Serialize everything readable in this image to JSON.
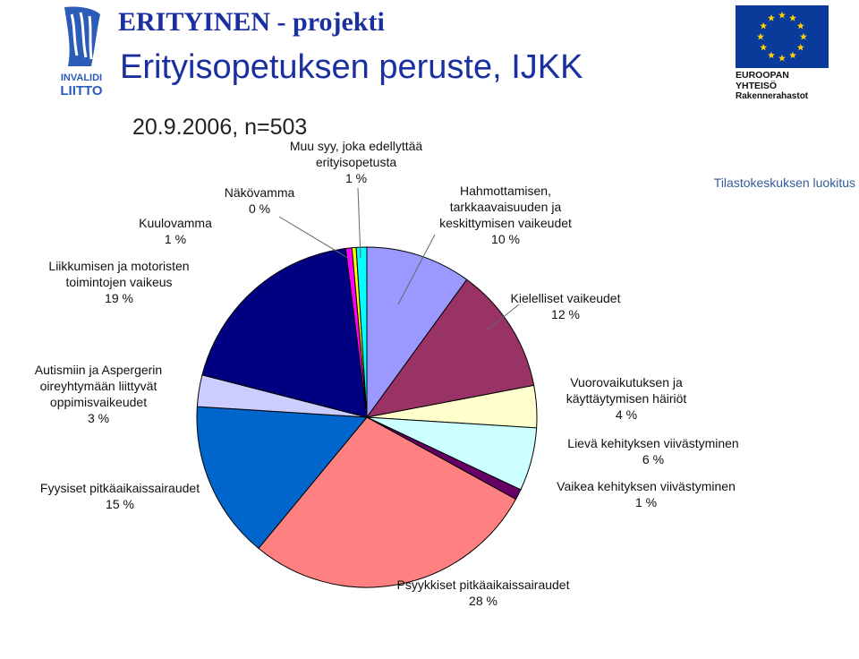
{
  "header": {
    "title": "ERITYINEN - projekti",
    "subtitle": "Erityisopetuksen peruste, IJKK",
    "date_line": "20.9.2006, n=503",
    "source": "Tilastokeskuksen luokitus"
  },
  "logos": {
    "left_logo_text": [
      "INVALIDI",
      "LIITTO"
    ],
    "eu_text": [
      "EUROOPAN",
      "YHTEISÖ",
      "Rakennerahastot"
    ]
  },
  "colors": {
    "title": "#1a2fa0",
    "source": "#335c99",
    "eu_blue": "#0a3a9a",
    "eu_star": "#ffd200"
  },
  "chart_data": {
    "type": "pie",
    "series": [
      {
        "lines": [
          "Hahmottamisen,",
          "tarkkaavaisuuden ja",
          "keskittymisen vaikeudet"
        ],
        "label": "10 %",
        "value": 10,
        "color": "#9999ff"
      },
      {
        "lines": [
          "Kielelliset vaikeudet"
        ],
        "label": "12 %",
        "value": 12,
        "color": "#993366"
      },
      {
        "lines": [
          "Vuorovaikutuksen ja",
          "käyttäytymisen häiriöt"
        ],
        "label": "4 %",
        "value": 4,
        "color": "#ffffcc"
      },
      {
        "lines": [
          "Lievä kehityksen viivästyminen"
        ],
        "label": "6 %",
        "value": 6,
        "color": "#ccffff"
      },
      {
        "lines": [
          "Vaikea kehityksen viivästyminen"
        ],
        "label": "1 %",
        "value": 1,
        "color": "#660066"
      },
      {
        "lines": [
          "Psyykkiset pitkäaikaissairaudet"
        ],
        "label": "28 %",
        "value": 28,
        "color": "#ff8080"
      },
      {
        "lines": [
          "Fyysiset pitkäaikaissairaudet"
        ],
        "label": "15 %",
        "value": 15,
        "color": "#0066cc"
      },
      {
        "lines": [
          "Autismiin ja Aspergerin",
          "oireyhtymään liittyvät",
          "oppimisvaikeudet"
        ],
        "label": "3 %",
        "value": 3,
        "color": "#ccccff"
      },
      {
        "lines": [
          "Liikkumisen ja motoristen",
          "toimintojen vaikeus"
        ],
        "label": "19 %",
        "value": 19,
        "color": "#000080"
      },
      {
        "lines": [
          "Kuulovamma"
        ],
        "label": "1 %",
        "value": 0.6,
        "color": "#ff00ff"
      },
      {
        "lines": [
          "Näkövamma"
        ],
        "label": "0 %",
        "value": 0.4,
        "color": "#ffff00"
      },
      {
        "lines": [
          "Muu syy, joka edellyttää",
          "erityisopetusta"
        ],
        "label": "1 %",
        "value": 1,
        "color": "#00ffff"
      }
    ]
  }
}
